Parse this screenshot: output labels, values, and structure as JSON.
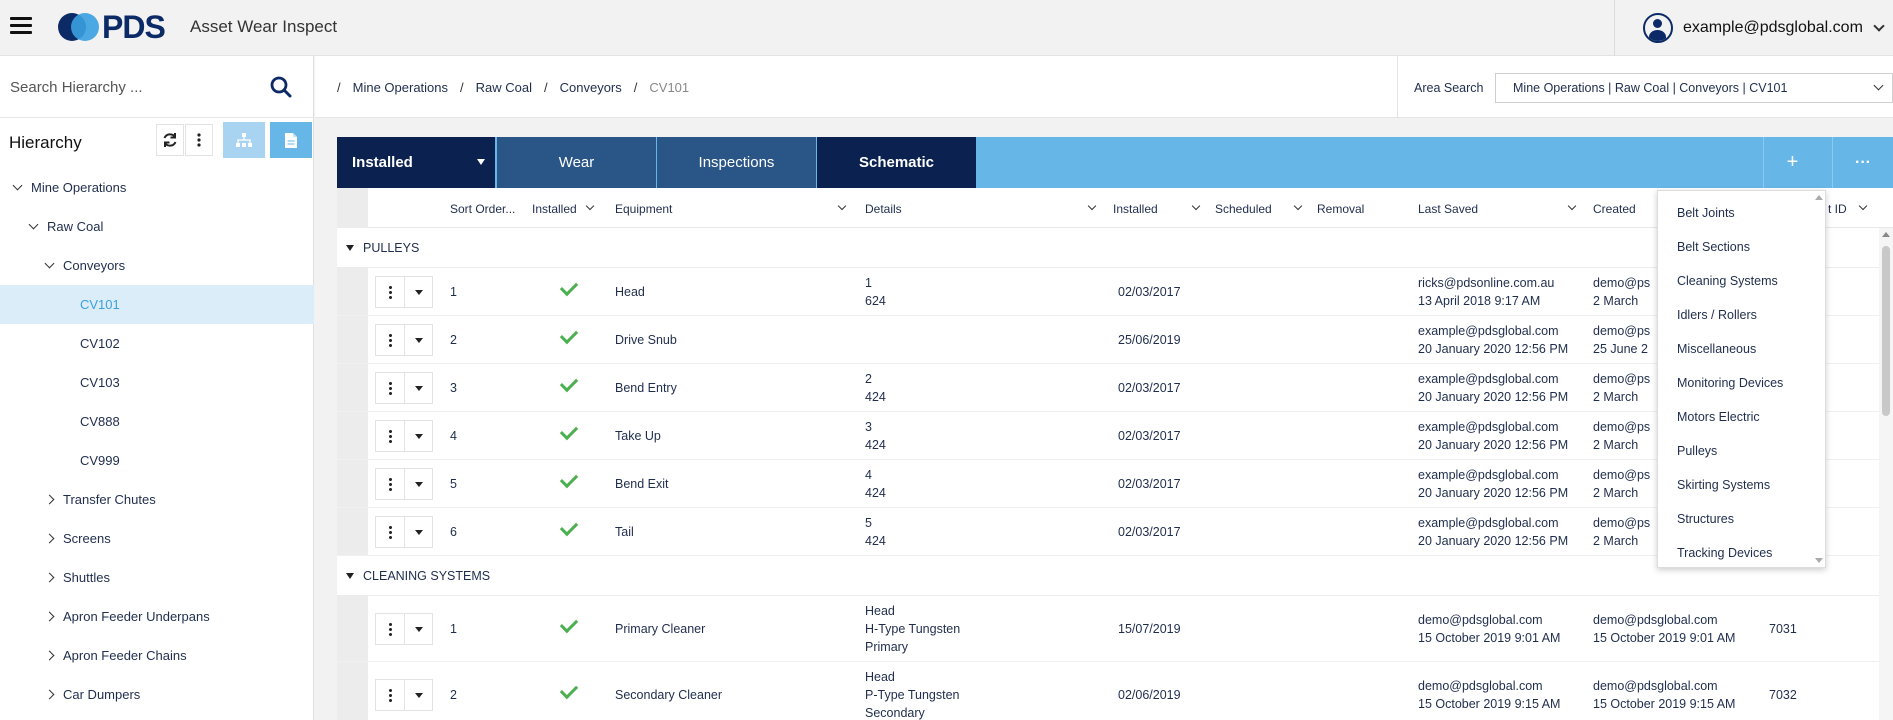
{
  "header": {
    "logo_text": "PDS",
    "app_title": "Asset Wear Inspect",
    "user_email": "example@pdsglobal.com"
  },
  "sidebar": {
    "search_placeholder": "Search Hierarchy ...",
    "title": "Hierarchy",
    "tree": [
      {
        "label": "Mine Operations",
        "level": 0,
        "state": "expanded"
      },
      {
        "label": "Raw Coal",
        "level": 1,
        "state": "expanded"
      },
      {
        "label": "Conveyors",
        "level": 2,
        "state": "expanded"
      },
      {
        "label": "CV101",
        "level": 3,
        "state": "leaf",
        "selected": true
      },
      {
        "label": "CV102",
        "level": 3,
        "state": "leaf"
      },
      {
        "label": "CV103",
        "level": 3,
        "state": "leaf"
      },
      {
        "label": "CV888",
        "level": 3,
        "state": "leaf"
      },
      {
        "label": "CV999",
        "level": 3,
        "state": "leaf"
      },
      {
        "label": "Transfer Chutes",
        "level": 2,
        "state": "collapsed"
      },
      {
        "label": "Screens",
        "level": 2,
        "state": "collapsed"
      },
      {
        "label": "Shuttles",
        "level": 2,
        "state": "collapsed"
      },
      {
        "label": "Apron Feeder Underpans",
        "level": 2,
        "state": "collapsed"
      },
      {
        "label": "Apron Feeder Chains",
        "level": 2,
        "state": "collapsed"
      },
      {
        "label": "Car Dumpers",
        "level": 2,
        "state": "collapsed"
      }
    ]
  },
  "breadcrumb": {
    "items": [
      "Mine Operations",
      "Raw Coal",
      "Conveyors",
      "CV101"
    ],
    "area_search_label": "Area Search",
    "area_search_value": "Mine Operations | Raw Coal | Conveyors | CV101"
  },
  "tabs": {
    "installed": "Installed",
    "wear": "Wear",
    "inspections": "Inspections",
    "schematic": "Schematic",
    "add": "+",
    "more": "···"
  },
  "columns": [
    "Sort Order...",
    "Installed",
    "Equipment",
    "Details",
    "Installed",
    "Scheduled",
    "Removal",
    "Last Saved",
    "Created",
    "t ID"
  ],
  "groups": [
    {
      "name": "PULLEYS",
      "rows": [
        {
          "sort": "1",
          "equipment": "Head",
          "details": [
            "1",
            "624"
          ],
          "installed": "02/03/2017",
          "last_saved": [
            "ricks@pdsonline.com.au",
            "13 April 2018 9:17 AM"
          ],
          "created": [
            "demo@ps",
            "2 March"
          ],
          "id": ""
        },
        {
          "sort": "2",
          "equipment": "Drive Snub",
          "details": [],
          "installed": "25/06/2019",
          "last_saved": [
            "example@pdsglobal.com",
            "20 January 2020 12:56 PM"
          ],
          "created": [
            "demo@ps",
            "25 June 2"
          ],
          "id": ""
        },
        {
          "sort": "3",
          "equipment": "Bend Entry",
          "details": [
            "2",
            "424"
          ],
          "installed": "02/03/2017",
          "last_saved": [
            "example@pdsglobal.com",
            "20 January 2020 12:56 PM"
          ],
          "created": [
            "demo@ps",
            "2 March"
          ],
          "id": ""
        },
        {
          "sort": "4",
          "equipment": "Take Up",
          "details": [
            "3",
            "424"
          ],
          "installed": "02/03/2017",
          "last_saved": [
            "example@pdsglobal.com",
            "20 January 2020 12:56 PM"
          ],
          "created": [
            "demo@ps",
            "2 March"
          ],
          "id": ""
        },
        {
          "sort": "5",
          "equipment": "Bend Exit",
          "details": [
            "4",
            "424"
          ],
          "installed": "02/03/2017",
          "last_saved": [
            "example@pdsglobal.com",
            "20 January 2020 12:56 PM"
          ],
          "created": [
            "demo@ps",
            "2 March"
          ],
          "id": ""
        },
        {
          "sort": "6",
          "equipment": "Tail",
          "details": [
            "5",
            "424"
          ],
          "installed": "02/03/2017",
          "last_saved": [
            "example@pdsglobal.com",
            "20 January 2020 12:56 PM"
          ],
          "created": [
            "demo@ps",
            "2 March"
          ],
          "id": ""
        }
      ]
    },
    {
      "name": "CLEANING SYSTEMS",
      "rows": [
        {
          "sort": "1",
          "equipment": "Primary Cleaner",
          "details": [
            "Head",
            "H-Type Tungsten",
            "Primary"
          ],
          "installed": "15/07/2019",
          "last_saved": [
            "demo@pdsglobal.com",
            "15 October 2019 9:01 AM"
          ],
          "created": [
            "demo@pdsglobal.com",
            "15 October 2019 9:01 AM"
          ],
          "id": "7031"
        },
        {
          "sort": "2",
          "equipment": "Secondary Cleaner",
          "details": [
            "Head",
            "P-Type Tungsten",
            "Secondary"
          ],
          "installed": "02/06/2019",
          "last_saved": [
            "demo@pdsglobal.com",
            "15 October 2019 9:15 AM"
          ],
          "created": [
            "demo@pdsglobal.com",
            "15 October 2019 9:15 AM"
          ],
          "id": "7032"
        }
      ]
    }
  ],
  "add_menu": {
    "items": [
      "Belt Joints",
      "Belt Sections",
      "Cleaning Systems",
      "Idlers / Rollers",
      "Miscellaneous",
      "Monitoring Devices",
      "Motors Electric",
      "Pulleys",
      "Skirting Systems",
      "Structures",
      "Tracking Devices"
    ]
  }
}
